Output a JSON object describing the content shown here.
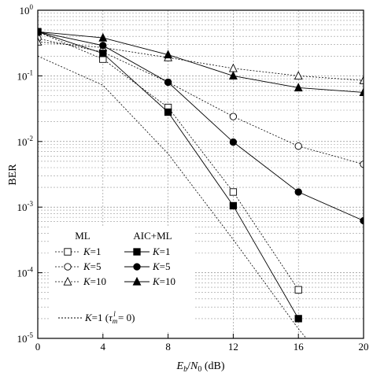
{
  "chart_data": {
    "type": "line",
    "y_scale": "log",
    "xlim": [
      0,
      20
    ],
    "ylim": [
      1e-05,
      1
    ],
    "grid": true,
    "legend_placement": "bottom-left",
    "x_ticks": [
      0,
      4,
      8,
      12,
      16,
      20
    ],
    "y_ticks": [
      1,
      0.1,
      0.01,
      0.001,
      0.0001,
      1e-05
    ],
    "xlabel": {
      "e": "E",
      "e_sub": "b",
      "slash": "/",
      "n": "N",
      "n_sub": "0",
      "unit": " (dB)"
    },
    "ylabel": "BER",
    "legend": {
      "ml_header": "ML",
      "aic_header": "AIC+ML",
      "k_label": "K",
      "k_values": [
        "=1",
        "=5",
        "=10"
      ],
      "tau_entry": {
        "k": "K",
        "eq1": "=1 (",
        "tau": "τ",
        "sub": "m",
        "sup": "l",
        "eq2": " = 0)"
      }
    },
    "series": [
      {
        "group": "ML",
        "k": 1,
        "marker": "square-open",
        "dash": "dotted",
        "x": [
          0,
          4,
          8,
          12,
          16
        ],
        "y": [
          0.47,
          0.18,
          0.033,
          0.0017,
          5.5e-05
        ]
      },
      {
        "group": "ML",
        "k": 5,
        "marker": "circle-open",
        "dash": "dotted",
        "x": [
          0,
          4,
          8,
          12,
          16,
          20
        ],
        "y": [
          0.37,
          0.23,
          0.08,
          0.024,
          0.0085,
          0.0045
        ]
      },
      {
        "group": "ML",
        "k": 10,
        "marker": "triangle-open",
        "dash": "dotted",
        "x": [
          0,
          4,
          8,
          12,
          16,
          20
        ],
        "y": [
          0.33,
          0.27,
          0.19,
          0.13,
          0.1,
          0.085
        ]
      },
      {
        "group": "AIC+ML",
        "k": 1,
        "marker": "square-filled",
        "dash": "solid",
        "x": [
          0,
          4,
          8,
          12,
          16
        ],
        "y": [
          0.47,
          0.22,
          0.028,
          0.00105,
          2e-05
        ]
      },
      {
        "group": "AIC+ML",
        "k": 5,
        "marker": "circle-filled",
        "dash": "solid",
        "x": [
          0,
          4,
          8,
          12,
          16,
          20
        ],
        "y": [
          0.47,
          0.29,
          0.08,
          0.0098,
          0.0017,
          0.00062
        ]
      },
      {
        "group": "AIC+ML",
        "k": 10,
        "marker": "triangle-filled",
        "dash": "solid",
        "x": [
          0,
          4,
          8,
          12,
          16,
          20
        ],
        "y": [
          0.47,
          0.38,
          0.21,
          0.1,
          0.066,
          0.056
        ]
      },
      {
        "group": "reference",
        "k": 1,
        "marker": "none",
        "dash": "dotted",
        "x": [
          0,
          4,
          8,
          12,
          16,
          17.5
        ],
        "y": [
          0.2,
          0.072,
          0.0065,
          0.00032,
          1.4e-05,
          5e-06
        ]
      }
    ]
  }
}
